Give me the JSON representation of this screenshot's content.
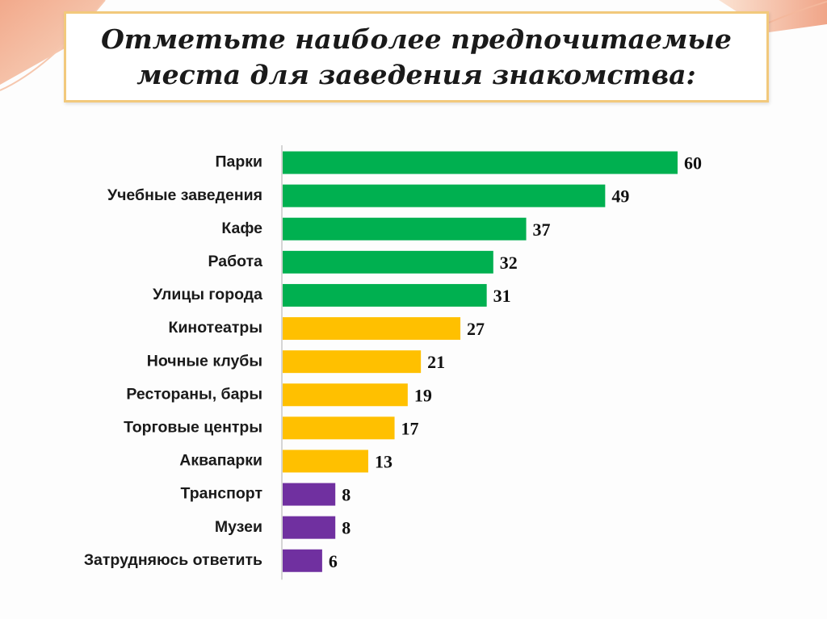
{
  "title": "Отметьте наиболее предпочитаемые\nместа для заведения знакомства:",
  "chart_data": {
    "type": "bar",
    "orientation": "horizontal",
    "categories": [
      "Парки",
      "Учебные заведения",
      "Кафе",
      "Работа",
      "Улицы города",
      "Кинотеатры",
      "Ночные клубы",
      "Рестораны, бары",
      "Торговые центры",
      "Аквапарки",
      "Транспорт",
      "Музеи",
      "Затрудняюсь ответить"
    ],
    "values": [
      60,
      49,
      37,
      32,
      31,
      27,
      21,
      19,
      17,
      13,
      8,
      8,
      6
    ],
    "colors": [
      "#00b050",
      "#00b050",
      "#00b050",
      "#00b050",
      "#00b050",
      "#ffc000",
      "#ffc000",
      "#ffc000",
      "#ffc000",
      "#ffc000",
      "#7030a0",
      "#7030a0",
      "#7030a0"
    ],
    "xlim": [
      0,
      60
    ],
    "grid": false,
    "data_labels": true
  }
}
